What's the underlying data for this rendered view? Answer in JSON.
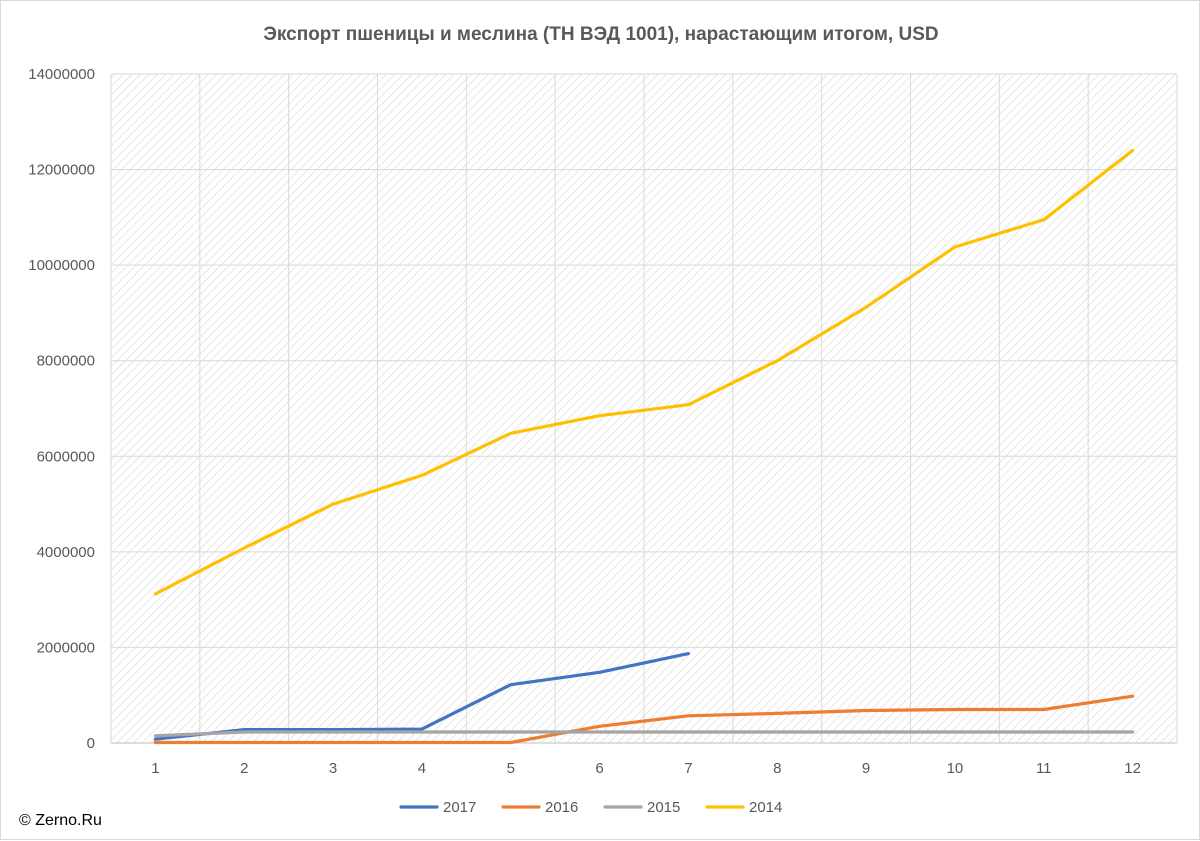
{
  "credit": "© Zerno.Ru",
  "chart_data": {
    "type": "line",
    "title": "Экспорт пшеницы и меслина (ТН ВЭД 1001), нарастающим итогом, USD",
    "xlabel": "",
    "ylabel": "",
    "categories": [
      "1",
      "2",
      "3",
      "4",
      "5",
      "6",
      "7",
      "8",
      "9",
      "10",
      "11",
      "12"
    ],
    "ylim": [
      0,
      14000000
    ],
    "yticks": [
      "0",
      "2000000",
      "4000000",
      "6000000",
      "8000000",
      "10000000",
      "12000000",
      "14000000"
    ],
    "grid": true,
    "legend_position": "bottom",
    "series": [
      {
        "name": "2017",
        "color": "#4472c4",
        "values": [
          80000,
          280000,
          280000,
          290000,
          1220000,
          1480000,
          1870000,
          null,
          null,
          null,
          null,
          null
        ]
      },
      {
        "name": "2016",
        "color": "#ed7d31",
        "values": [
          10000,
          10000,
          10000,
          10000,
          10000,
          350000,
          570000,
          620000,
          680000,
          700000,
          700000,
          980000
        ]
      },
      {
        "name": "2015",
        "color": "#a5a5a5",
        "values": [
          150000,
          230000,
          230000,
          230000,
          230000,
          230000,
          230000,
          230000,
          230000,
          230000,
          230000,
          230000
        ]
      },
      {
        "name": "2014",
        "color": "#ffc000",
        "values": [
          3120000,
          4080000,
          5000000,
          5600000,
          6480000,
          6850000,
          7080000,
          8000000,
          9120000,
          10380000,
          10950000,
          12400000
        ]
      }
    ]
  }
}
